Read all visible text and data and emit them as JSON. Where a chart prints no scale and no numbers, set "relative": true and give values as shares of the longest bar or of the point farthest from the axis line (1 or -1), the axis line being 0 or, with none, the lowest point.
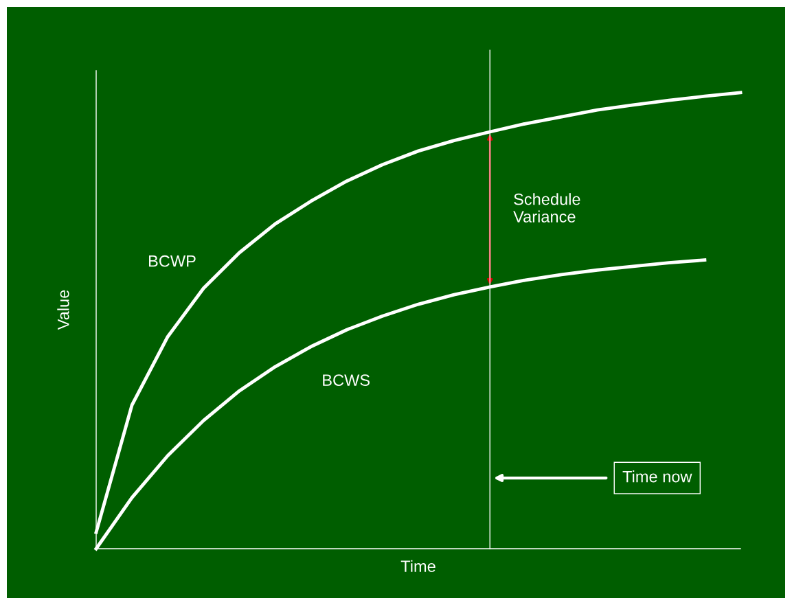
{
  "chart_data": {
    "type": "line",
    "relative": true,
    "xlabel": "Time",
    "ylabel": "Value",
    "categories": [
      null,
      null,
      null,
      null,
      null,
      null,
      null,
      null,
      null,
      null,
      null,
      null,
      null,
      null,
      null,
      null,
      null,
      null,
      null
    ],
    "series": [
      {
        "name": "BCWP",
        "color": "#ffffff",
        "values": [
          0.036,
          0.315,
          0.465,
          0.571,
          0.649,
          0.712,
          0.762,
          0.806,
          0.842,
          0.872,
          0.895,
          0.914,
          0.932,
          0.947,
          0.962,
          0.973,
          0.983,
          0.992,
          1.0
        ]
      },
      {
        "name": "BCWS",
        "color": "#ffffff",
        "values": [
          0,
          0.112,
          0.204,
          0.281,
          0.346,
          0.399,
          0.443,
          0.48,
          0.51,
          0.536,
          0.557,
          0.574,
          0.589,
          0.601,
          0.611,
          0.619,
          0.627,
          0.633,
          null
        ]
      }
    ],
    "annotations": [
      "Schedule\nVariance",
      "Time now"
    ],
    "legend": false,
    "marker": "none",
    "line_style": "solid"
  }
}
